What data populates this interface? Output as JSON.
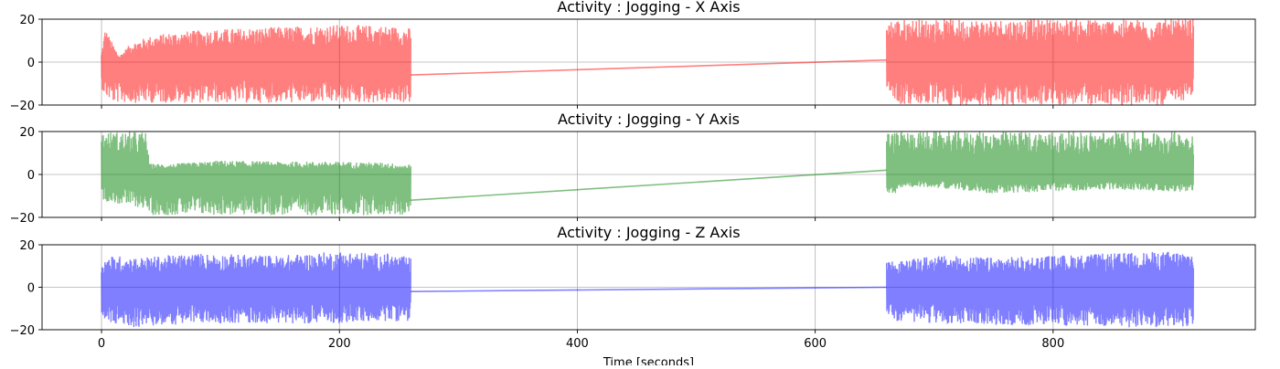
{
  "chart_data": [
    {
      "type": "line",
      "title": "Activity : Jogging - X Axis",
      "xlabel": "",
      "ylabel": "",
      "color": "#ff0000",
      "alpha": 0.5,
      "grid": true,
      "xlim": [
        -50,
        970
      ],
      "ylim": [
        -20,
        20
      ],
      "xticks": [
        0,
        200,
        400,
        600,
        800
      ],
      "xtick_labels": [
        "",
        "",
        "",
        "",
        ""
      ],
      "yticks": [
        -20,
        0,
        20
      ],
      "ytick_labels": [
        "−20",
        "0",
        "20"
      ],
      "segments": [
        {
          "x": [
            0,
            260
          ],
          "center": 0,
          "envelope": [
            [
              0,
              -12,
              4
            ],
            [
              3,
              -16,
              16
            ],
            [
              10,
              -19,
              8
            ],
            [
              15,
              -19,
              3
            ],
            [
              25,
              -19,
              9
            ],
            [
              40,
              -19,
              12
            ],
            [
              60,
              -19,
              14
            ],
            [
              100,
              -19,
              15.5
            ],
            [
              150,
              -19,
              16.5
            ],
            [
              200,
              -19,
              17.5
            ],
            [
              240,
              -19,
              17
            ],
            [
              256,
              -19,
              16
            ],
            [
              260,
              -19,
              16
            ]
          ]
        },
        {
          "x": [
            660,
            918
          ],
          "center": 0,
          "envelope": [
            [
              660,
              -12,
              20
            ],
            [
              668,
              -18,
              20
            ],
            [
              672,
              -20,
              20
            ],
            [
              700,
              -20,
              20
            ],
            [
              800,
              -20,
              20
            ],
            [
              900,
              -20,
              20
            ],
            [
              918,
              -16,
              20
            ]
          ]
        }
      ],
      "connector": {
        "x": [
          260,
          660
        ],
        "y": [
          -6,
          1
        ]
      }
    },
    {
      "type": "line",
      "title": "Activity : Jogging - Y Axis",
      "xlabel": "",
      "ylabel": "",
      "color": "#008000",
      "alpha": 0.5,
      "grid": true,
      "xlim": [
        -50,
        970
      ],
      "ylim": [
        -20,
        20
      ],
      "xticks": [
        0,
        200,
        400,
        600,
        800
      ],
      "xtick_labels": [
        "",
        "",
        "",
        "",
        ""
      ],
      "yticks": [
        -20,
        0,
        20
      ],
      "ytick_labels": [
        "−20",
        "0",
        "20"
      ],
      "segments": [
        {
          "x": [
            0,
            260
          ],
          "center": 0,
          "envelope": [
            [
              0,
              -12,
              20
            ],
            [
              15,
              -14,
              20
            ],
            [
              38,
              -16,
              20
            ],
            [
              40,
              -19,
              5
            ],
            [
              60,
              -19,
              5
            ],
            [
              100,
              -19,
              6.5
            ],
            [
              150,
              -19,
              6
            ],
            [
              200,
              -19,
              6
            ],
            [
              240,
              -19,
              5.5
            ],
            [
              256,
              -19,
              4.5
            ],
            [
              260,
              -19,
              5
            ]
          ]
        },
        {
          "x": [
            660,
            918
          ],
          "center": 0,
          "envelope": [
            [
              660,
              -8,
              20
            ],
            [
              668,
              -10,
              20
            ],
            [
              672,
              -6,
              20
            ],
            [
              700,
              -6,
              20
            ],
            [
              750,
              -9,
              20
            ],
            [
              800,
              -8,
              20
            ],
            [
              850,
              -7,
              20
            ],
            [
              900,
              -8,
              20
            ],
            [
              918,
              -8,
              20
            ]
          ]
        }
      ],
      "connector": {
        "x": [
          260,
          660
        ],
        "y": [
          -12,
          2
        ]
      }
    },
    {
      "type": "line",
      "title": "Activity : Jogging - Z Axis",
      "xlabel": "Time [seconds]",
      "ylabel": "",
      "color": "#0000ff",
      "alpha": 0.5,
      "grid": true,
      "xlim": [
        -50,
        970
      ],
      "ylim": [
        -20,
        20
      ],
      "xticks": [
        0,
        200,
        400,
        600,
        800
      ],
      "xtick_labels": [
        "0",
        "200",
        "400",
        "600",
        "800"
      ],
      "yticks": [
        -20,
        0,
        20
      ],
      "ytick_labels": [
        "−20",
        "0",
        "20"
      ],
      "segments": [
        {
          "x": [
            0,
            260
          ],
          "center": 0,
          "envelope": [
            [
              0,
              -14,
              13
            ],
            [
              10,
              -18,
              15
            ],
            [
              30,
              -19,
              14
            ],
            [
              80,
              -17,
              16
            ],
            [
              150,
              -17,
              15
            ],
            [
              200,
              -17,
              17
            ],
            [
              240,
              -16,
              16
            ],
            [
              260,
              -16,
              14
            ]
          ]
        },
        {
          "x": [
            660,
            918
          ],
          "center": 0,
          "envelope": [
            [
              660,
              -12,
              14
            ],
            [
              668,
              -16,
              12
            ],
            [
              700,
              -17,
              15
            ],
            [
              750,
              -18,
              14
            ],
            [
              800,
              -18,
              15
            ],
            [
              850,
              -19,
              16
            ],
            [
              900,
              -19,
              17
            ],
            [
              918,
              -18,
              17
            ]
          ]
        }
      ],
      "connector": {
        "x": [
          260,
          660
        ],
        "y": [
          -2,
          0
        ]
      }
    }
  ]
}
